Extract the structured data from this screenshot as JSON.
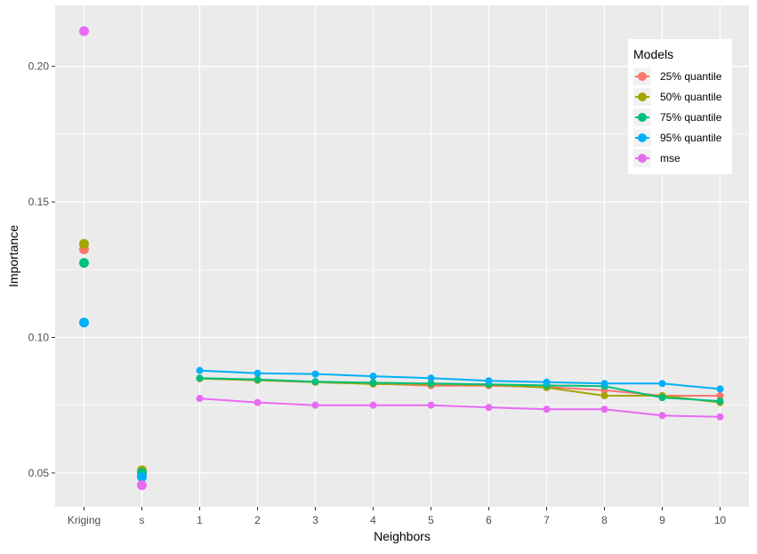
{
  "chart_data": {
    "type": "line",
    "title": "",
    "xlabel": "Neighbors",
    "ylabel": "Importance",
    "categories": [
      "Kriging",
      "s",
      "1",
      "2",
      "3",
      "4",
      "5",
      "6",
      "7",
      "8",
      "9",
      "10"
    ],
    "yticks": [
      0.05,
      0.1,
      0.15,
      0.2
    ],
    "ytick_labels": [
      "0.05",
      "0.10",
      "0.15",
      "0.20"
    ],
    "ylim": [
      0.0375,
      0.2225
    ],
    "grid": true,
    "legend": {
      "title": "Models",
      "placement": "top-right"
    },
    "series": [
      {
        "name": "25% quantile",
        "color": "#F8766D",
        "values": [
          0.1325,
          0.0495,
          0.0848,
          0.0843,
          0.0835,
          0.083,
          0.0822,
          0.0822,
          0.0817,
          0.0805,
          0.0785,
          0.0785
        ]
      },
      {
        "name": "50% quantile",
        "color": "#A3A500",
        "values": [
          0.1345,
          0.051,
          0.0848,
          0.0842,
          0.0835,
          0.0828,
          0.0828,
          0.0825,
          0.0815,
          0.0785,
          0.0785,
          0.076
        ]
      },
      {
        "name": "75% quantile",
        "color": "#00BF7D",
        "values": [
          0.1275,
          0.05,
          0.085,
          0.0845,
          0.0837,
          0.0833,
          0.083,
          0.0827,
          0.0823,
          0.082,
          0.0778,
          0.0765
        ]
      },
      {
        "name": "95% quantile",
        "color": "#00B0F6",
        "values": [
          0.1055,
          0.0485,
          0.0878,
          0.0868,
          0.0865,
          0.0857,
          0.085,
          0.084,
          0.0835,
          0.083,
          0.083,
          0.081
        ]
      },
      {
        "name": "mse",
        "color": "#E76BF3",
        "values": [
          0.213,
          0.0455,
          0.0775,
          0.076,
          0.075,
          0.075,
          0.075,
          0.0742,
          0.0735,
          0.0735,
          0.0712,
          0.0707
        ]
      }
    ]
  }
}
